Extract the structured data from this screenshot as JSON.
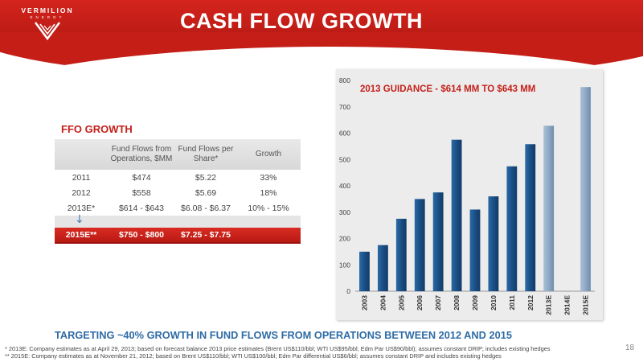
{
  "header": {
    "logo_text": "VERMILION",
    "logo_sub": "ENERGY",
    "title": "CASH FLOW GROWTH"
  },
  "table": {
    "title": "FFO GROWTH",
    "headers": [
      "",
      "Fund Flows from Operations, $MM",
      "Fund Flows per Share*",
      "Growth"
    ],
    "rows": [
      [
        "2011",
        "$474",
        "$5.22",
        "33%"
      ],
      [
        "2012",
        "$558",
        "$5.69",
        "18%"
      ],
      [
        "2013E*",
        "$614 - $643",
        "$6.08 - $6.37",
        "10% - 15%"
      ]
    ],
    "highlight_row": [
      "2015E**",
      "$750 - $800",
      "$7.25 - $7.75",
      ""
    ],
    "arrow_icon": "down-arrow-icon"
  },
  "chart_data": {
    "type": "bar",
    "title": "2013 GUIDANCE - $614 MM TO $643 MM",
    "categories": [
      "2003",
      "2004",
      "2005",
      "2006",
      "2007",
      "2008",
      "2009",
      "2010",
      "2011",
      "2012",
      "2013E",
      "2014E",
      "2015E"
    ],
    "values": [
      150,
      175,
      275,
      350,
      375,
      575,
      310,
      360,
      474,
      558,
      628,
      null,
      775
    ],
    "estimate_categories": [
      "2013E",
      "2014E",
      "2015E"
    ],
    "ylim": [
      0,
      800
    ],
    "yticks": [
      0,
      100,
      200,
      300,
      400,
      500,
      600,
      700,
      800
    ],
    "grid": false,
    "colors": {
      "actual": "#1b4f86",
      "estimate": "#8fa9c4"
    }
  },
  "footer": {
    "targeting": "TARGETING ~40% GROWTH IN FUND FLOWS FROM OPERATIONS BETWEEN 2012 AND 2015",
    "footnote1": "*   2013E: Company estimates as at April 29, 2013; based on forecast balance 2013 price estimates (Brent US$110/bbl; WTI US$95/bbl; Edm Par US$90/bbl); assumes constant DRIP; includes existing hedges",
    "footnote2": "** 2015E: Company estimates as at November 21, 2012; based on Brent US$110/bbl; WTI US$100/bbl; Edm Par differential US$6/bbl; assumes constant DRIP and includes existing hedges",
    "page_number": "18"
  },
  "colors": {
    "brand_red": "#c4201a",
    "accent_blue": "#2e6ba5"
  }
}
